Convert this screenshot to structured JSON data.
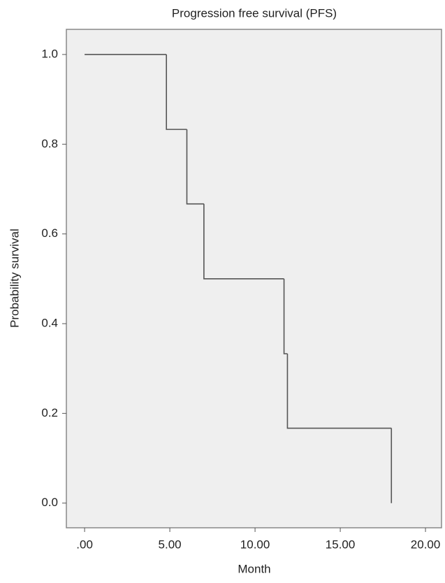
{
  "chart_data": {
    "type": "step",
    "title": "Progression free survival (PFS)",
    "x_label": "Month",
    "y_label": "Probability survival",
    "x": [
      0,
      4.8,
      6.0,
      7.0,
      11.7,
      11.9,
      18.0
    ],
    "values": [
      1.0,
      0.833,
      0.667,
      0.5,
      0.333,
      0.167,
      0.0
    ],
    "color": "#555555",
    "xlim": [
      -1.07,
      20.94
    ],
    "ylim": [
      -0.055,
      1.056
    ],
    "xticks": [
      {
        "value": 0,
        "label": ".00"
      },
      {
        "value": 5,
        "label": "5.00"
      },
      {
        "value": 10,
        "label": "10.00"
      },
      {
        "value": 15,
        "label": "15.00"
      },
      {
        "value": 20,
        "label": "20.00"
      }
    ],
    "yticks": [
      {
        "value": 0,
        "label": "0.0"
      },
      0.2,
      0.4,
      0.6,
      0.8,
      {
        "value": 1,
        "label": "1.0"
      }
    ]
  }
}
